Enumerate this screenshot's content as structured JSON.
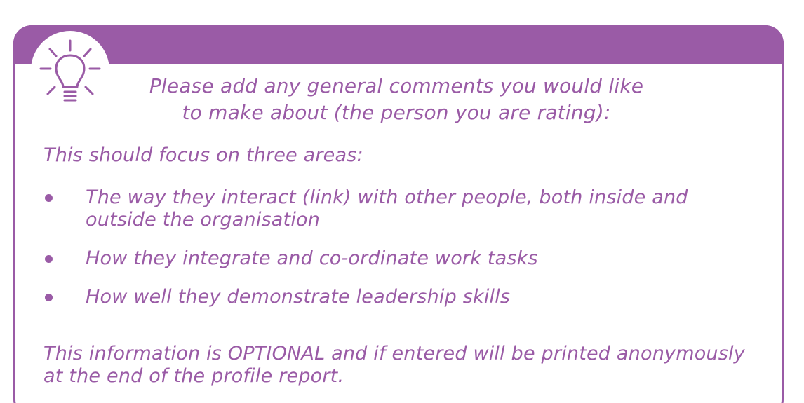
{
  "prompt": {
    "line1": "Please add any general comments you would like",
    "line2": "to make about (the person you are rating):"
  },
  "intro": "This should focus on three areas:",
  "focus_areas": [
    {
      "line1": "The way they interact (link) with other people, both inside and",
      "line2": "outside the organisation"
    },
    {
      "line1": "How they integrate and co-ordinate work tasks"
    },
    {
      "line1": "How well they demonstrate leadership skills"
    }
  ],
  "note": {
    "line1": "This information is OPTIONAL and if entered will be printed anonymously",
    "line2": "at the end of the profile report."
  },
  "icons": {
    "badge": "lightbulb-icon",
    "bullet": "bullet-dot"
  },
  "colors": {
    "accent": "#9a5ba6",
    "background": "#ffffff"
  }
}
